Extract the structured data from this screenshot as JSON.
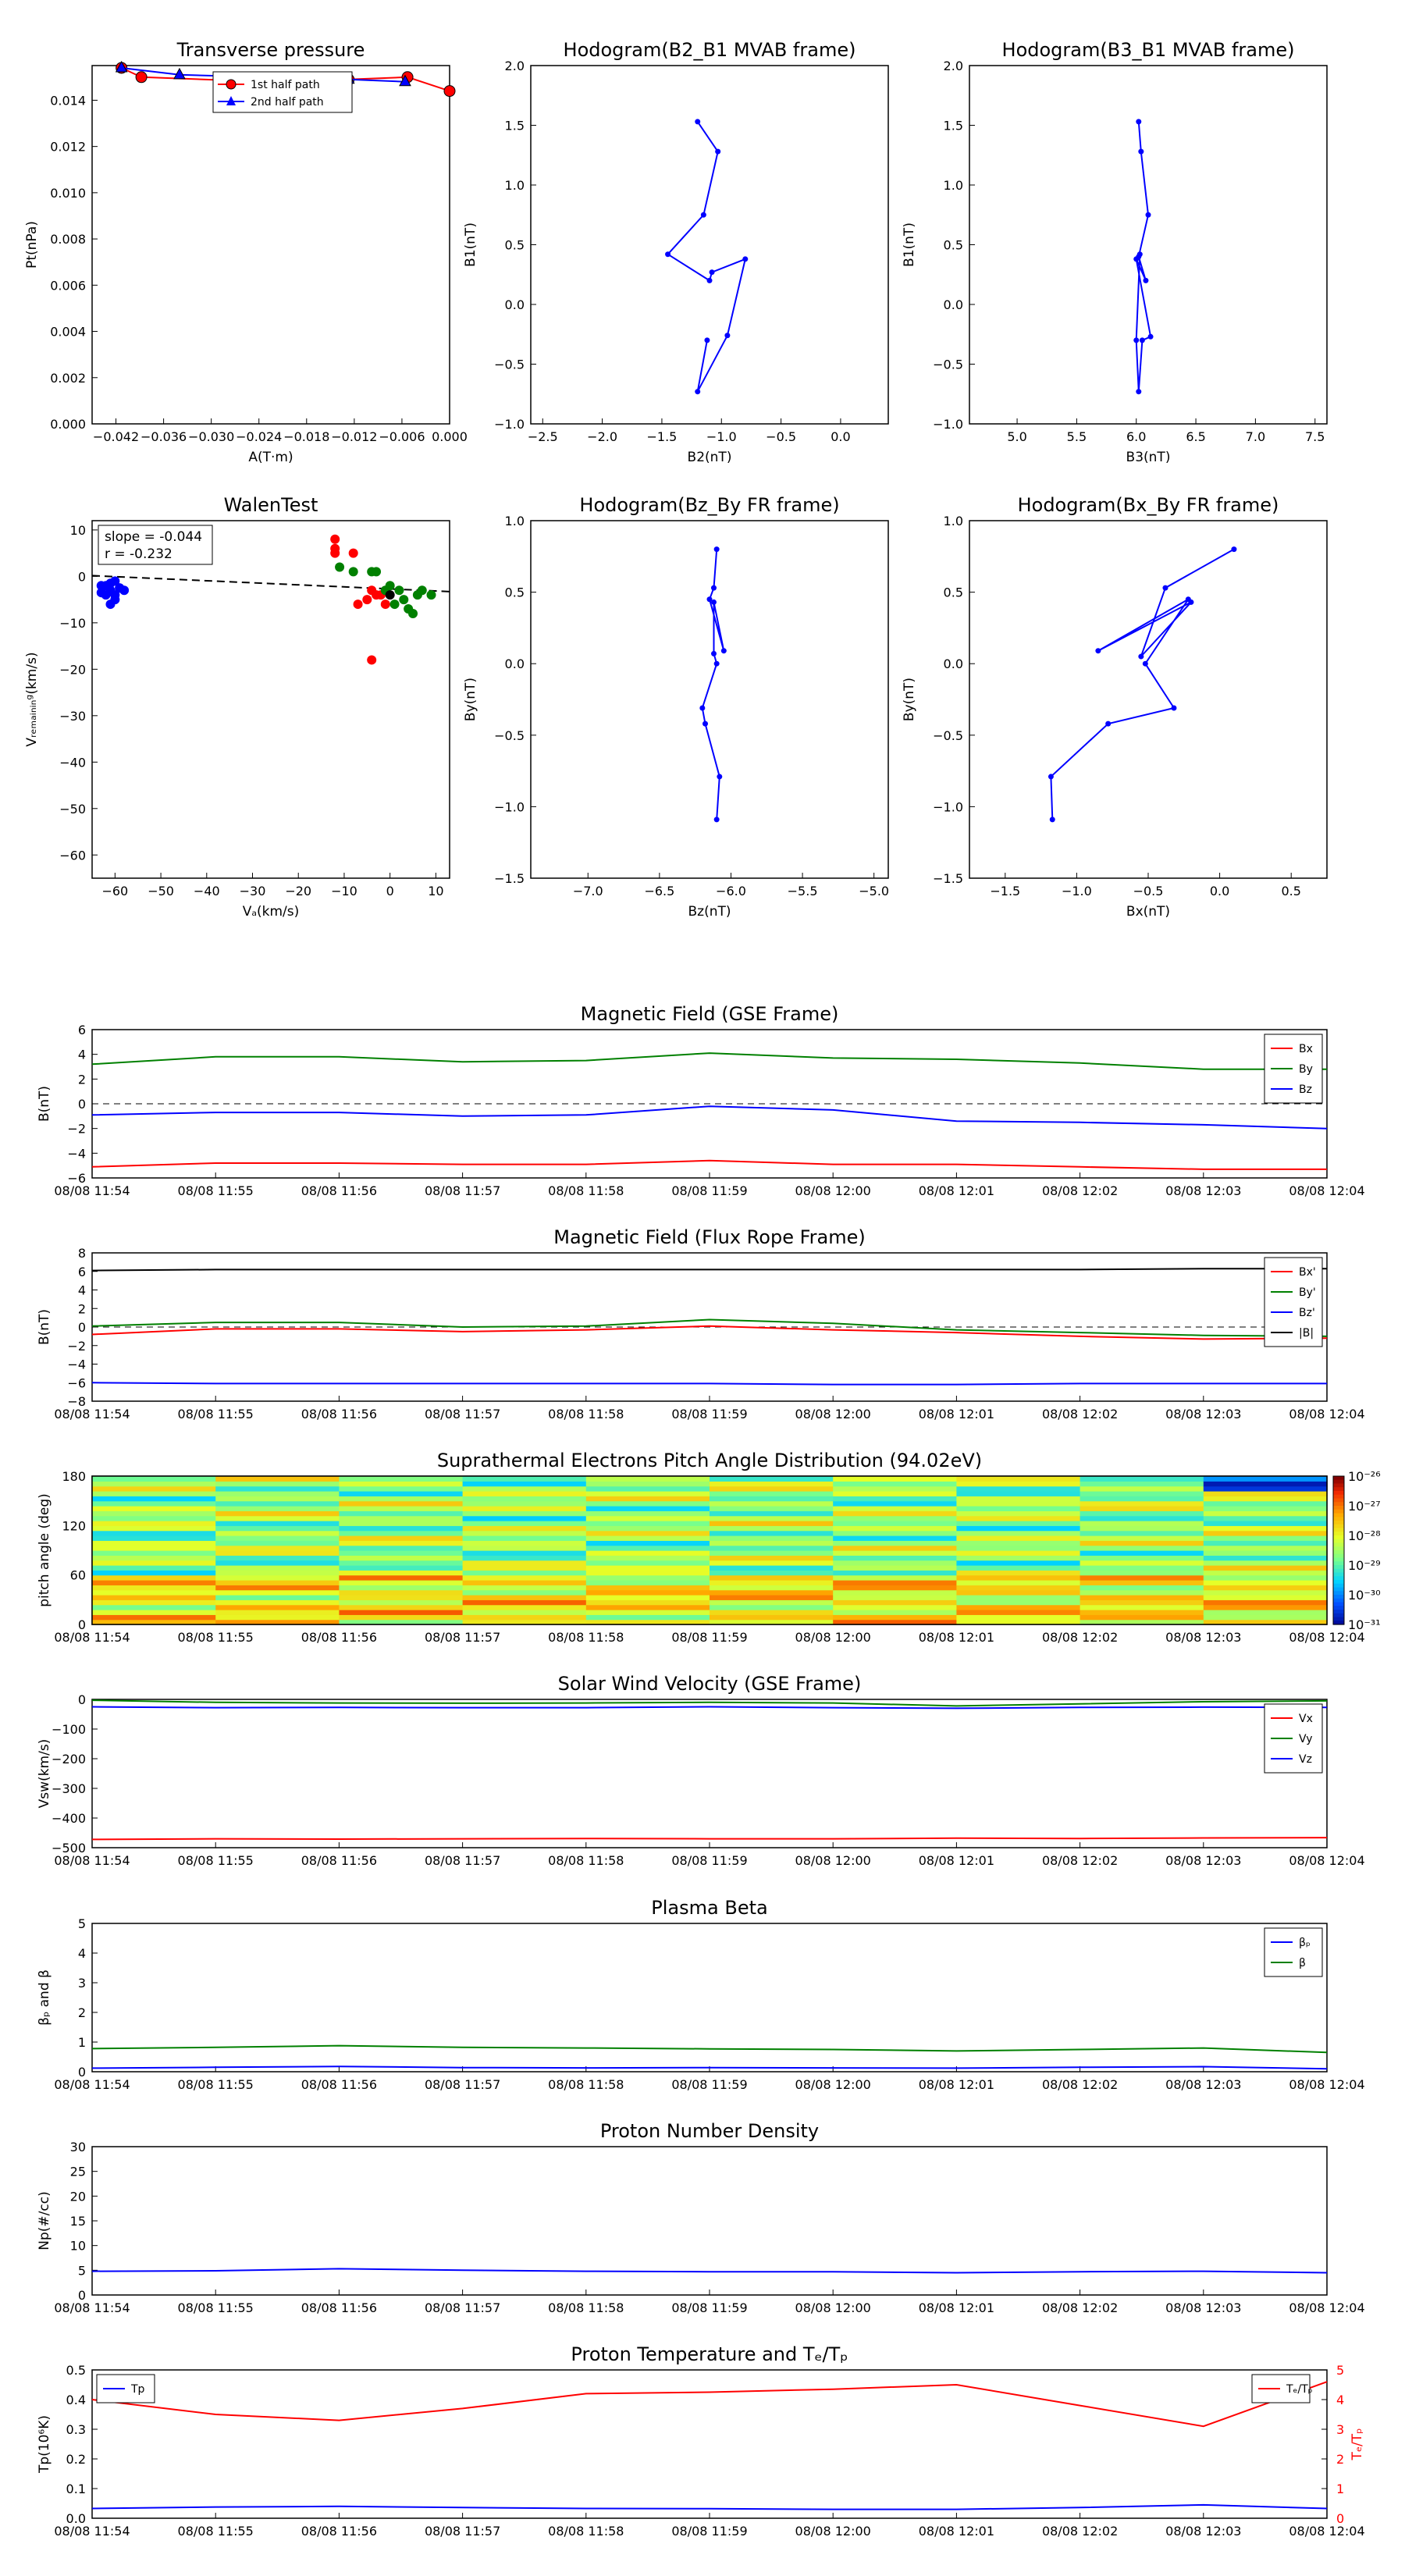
{
  "chart_data": [
    {
      "id": "tp",
      "type": "line",
      "title": "Transverse pressure",
      "xlabel": "A(T·m)",
      "ylabel": "Pt(nPa)",
      "xlim": [
        -0.045,
        0.0
      ],
      "ylim": [
        0.0,
        0.0155
      ],
      "xticks": [
        -0.042,
        -0.036,
        -0.03,
        -0.024,
        -0.018,
        -0.012,
        -0.006,
        0.0
      ],
      "xtick_labels": [
        "−0.042",
        "−0.036",
        "−0.030",
        "−0.024",
        "−0.018",
        "−0.012",
        "−0.006",
        "0.000"
      ],
      "yticks": [
        0.0,
        0.002,
        0.004,
        0.006,
        0.008,
        0.01,
        0.012,
        0.014
      ],
      "ytick_labels": [
        "0.000",
        "0.002",
        "0.004",
        "0.006",
        "0.008",
        "0.010",
        "0.012",
        "0.014"
      ],
      "legend": [
        "1st half path",
        "2nd half path"
      ],
      "series": [
        {
          "name": "1st half path",
          "color": "#ff0000",
          "marker": "circle",
          "x": [
            0.0,
            -0.0053,
            -0.0127,
            -0.0232,
            -0.0388,
            -0.0413
          ],
          "y": [
            0.0144,
            0.015,
            0.0149,
            0.0148,
            0.015,
            0.0154
          ]
        },
        {
          "name": "2nd half path",
          "color": "#0000ff",
          "marker": "triangle",
          "x": [
            -0.0413,
            -0.034,
            -0.0127,
            -0.0056
          ],
          "y": [
            0.0154,
            0.0151,
            0.0149,
            0.0148
          ]
        }
      ]
    },
    {
      "id": "h1",
      "type": "line",
      "title": "Hodogram(B2_B1 MVAB frame)",
      "xlabel": "B2(nT)",
      "ylabel": "B1(nT)",
      "xlim": [
        -2.6,
        0.4
      ],
      "ylim": [
        -1.0,
        2.0
      ],
      "xticks": [
        -2.5,
        -2.0,
        -1.5,
        -1.0,
        -0.5,
        0.0
      ],
      "xtick_labels": [
        "−2.5",
        "−2.0",
        "−1.5",
        "−1.0",
        "−0.5",
        "0.0"
      ],
      "yticks": [
        -1.0,
        -0.5,
        0.0,
        0.5,
        1.0,
        1.5,
        2.0
      ],
      "ytick_labels": [
        "−1.0",
        "−0.5",
        "0.0",
        "0.5",
        "1.0",
        "1.5",
        "2.0"
      ],
      "series": [
        {
          "color": "#0000ff",
          "marker": "dot",
          "x": [
            -1.2,
            -1.03,
            -1.15,
            -1.45,
            -1.1,
            -1.08,
            -0.8,
            -0.95,
            -1.2,
            -1.12
          ],
          "y": [
            1.53,
            1.28,
            0.75,
            0.42,
            0.2,
            0.27,
            0.38,
            -0.26,
            -0.73,
            -0.3
          ]
        }
      ]
    },
    {
      "id": "h2",
      "type": "line",
      "title": "Hodogram(B3_B1 MVAB frame)",
      "xlabel": "B3(nT)",
      "ylabel": "B1(nT)",
      "xlim": [
        4.6,
        7.6
      ],
      "ylim": [
        -1.0,
        2.0
      ],
      "xticks": [
        5.0,
        5.5,
        6.0,
        6.5,
        7.0,
        7.5
      ],
      "xtick_labels": [
        "5.0",
        "5.5",
        "6.0",
        "6.5",
        "7.0",
        "7.5"
      ],
      "yticks": [
        -1.0,
        -0.5,
        0.0,
        0.5,
        1.0,
        1.5,
        2.0
      ],
      "ytick_labels": [
        "−1.0",
        "−0.5",
        "0.0",
        "0.5",
        "1.0",
        "1.5",
        "2.0"
      ],
      "series": [
        {
          "color": "#0000ff",
          "marker": "dot",
          "x": [
            6.02,
            6.04,
            6.1,
            6.02,
            6.08,
            6.0,
            6.12,
            6.05,
            6.02,
            6.0,
            6.03
          ],
          "y": [
            1.53,
            1.28,
            0.75,
            0.4,
            0.2,
            0.38,
            -0.27,
            -0.3,
            -0.73,
            -0.3,
            0.42
          ]
        }
      ]
    },
    {
      "id": "walen",
      "type": "scatter",
      "title": "WalenTest",
      "xlabel": "Vₐ(km/s)",
      "ylabel": "Vᵣₑₘₐᵢₙᵢₙᵍ(km/s)",
      "xlim": [
        -65,
        13
      ],
      "ylim": [
        -65,
        12
      ],
      "xticks": [
        -60,
        -50,
        -40,
        -30,
        -20,
        -10,
        0,
        10
      ],
      "xtick_labels": [
        "−60",
        "−50",
        "−40",
        "−30",
        "−20",
        "−10",
        "0",
        "10"
      ],
      "yticks": [
        -60,
        -50,
        -40,
        -30,
        -20,
        -10,
        0,
        10
      ],
      "ytick_labels": [
        "−60",
        "−50",
        "−40",
        "−30",
        "−20",
        "−10",
        "0",
        "10"
      ],
      "annotation": [
        "slope = -0.044",
        "r = -0.232"
      ],
      "fit": {
        "slope": -0.044,
        "intercept": -2.7
      },
      "series": [
        {
          "color": "#0000ff",
          "x": [
            -63,
            -62,
            -61,
            -60,
            -59,
            -60,
            -61,
            -62,
            -58,
            -60,
            -63,
            -61,
            -59
          ],
          "y": [
            -2,
            -4,
            -3,
            -5,
            -2.5,
            -1,
            -6,
            -2,
            -3,
            -4,
            -3.5,
            -1.5,
            -2.5
          ]
        },
        {
          "color": "#ff0000",
          "x": [
            -12,
            -12,
            -8,
            -7,
            -5,
            -4,
            -3,
            -2,
            -1,
            -12,
            -4
          ],
          "y": [
            8,
            5,
            5,
            -6,
            -5,
            -3,
            -4,
            -4,
            -6,
            6,
            -18
          ]
        },
        {
          "color": "#008000",
          "x": [
            -11,
            -8,
            -3,
            -1,
            0,
            1,
            2,
            3,
            4,
            5,
            6,
            7,
            9,
            -4
          ],
          "y": [
            2,
            1,
            1,
            -3,
            -2,
            -6,
            -3,
            -5,
            -7,
            -8,
            -4,
            -3,
            -4,
            1
          ]
        },
        {
          "color": "#000000",
          "x": [
            0
          ],
          "y": [
            -4
          ]
        }
      ]
    },
    {
      "id": "h3",
      "type": "line",
      "title": "Hodogram(Bz_By FR frame)",
      "xlabel": "Bz(nT)",
      "ylabel": "By(nT)",
      "xlim": [
        -7.4,
        -4.9
      ],
      "ylim": [
        -1.5,
        1.0
      ],
      "xticks": [
        -7.0,
        -6.5,
        -6.0,
        -5.5,
        -5.0
      ],
      "xtick_labels": [
        "−7.0",
        "−6.5",
        "−6.0",
        "−5.5",
        "−5.0"
      ],
      "yticks": [
        -1.5,
        -1.0,
        -0.5,
        0.0,
        0.5,
        1.0
      ],
      "ytick_labels": [
        "−1.5",
        "−1.0",
        "−0.5",
        "0.0",
        "0.5",
        "1.0"
      ],
      "series": [
        {
          "color": "#0000ff",
          "marker": "dot",
          "x": [
            -6.1,
            -6.12,
            -6.15,
            -6.05,
            -6.12,
            -6.12,
            -6.1,
            -6.2,
            -6.18,
            -6.08,
            -6.1
          ],
          "y": [
            0.8,
            0.53,
            0.45,
            0.09,
            0.43,
            0.07,
            0.0,
            -0.31,
            -0.42,
            -0.79,
            -1.09
          ]
        }
      ]
    },
    {
      "id": "h4",
      "type": "line",
      "title": "Hodogram(Bx_By FR frame)",
      "xlabel": "Bx(nT)",
      "ylabel": "By(nT)",
      "xlim": [
        -1.75,
        0.75
      ],
      "ylim": [
        -1.5,
        1.0
      ],
      "xticks": [
        -1.5,
        -1.0,
        -0.5,
        0.0,
        0.5
      ],
      "xtick_labels": [
        "−1.5",
        "−1.0",
        "−0.5",
        "0.0",
        "0.5"
      ],
      "yticks": [
        -1.5,
        -1.0,
        -0.5,
        0.0,
        0.5,
        1.0
      ],
      "ytick_labels": [
        "−1.5",
        "−1.0",
        "−0.5",
        "0.0",
        "0.5",
        "1.0"
      ],
      "series": [
        {
          "color": "#0000ff",
          "marker": "dot",
          "x": [
            0.1,
            -0.38,
            -0.55,
            -0.2,
            -0.85,
            -0.22,
            -0.52,
            -0.32,
            -0.78,
            -1.18,
            -1.17
          ],
          "y": [
            0.8,
            0.53,
            0.05,
            0.43,
            0.09,
            0.45,
            0.0,
            -0.31,
            -0.42,
            -0.79,
            -1.09
          ]
        }
      ]
    },
    {
      "id": "mag_gse",
      "type": "line",
      "title": "Magnetic Field (GSE Frame)",
      "ylabel": "B(nT)",
      "ylim": [
        -6,
        6
      ],
      "yticks": [
        -6,
        -4,
        -2,
        0,
        2,
        4,
        6
      ],
      "ytick_labels": [
        "−6",
        "−4",
        "−2",
        "0",
        "2",
        "4",
        "6"
      ],
      "zero_line": true,
      "legend": [
        "Bx",
        "By",
        "Bz"
      ],
      "series": [
        {
          "name": "Bx",
          "color": "#ff0000",
          "values": [
            -5.1,
            -4.8,
            -4.8,
            -4.9,
            -4.9,
            -4.6,
            -4.9,
            -4.9,
            -5.1,
            -5.3,
            -5.3
          ]
        },
        {
          "name": "By",
          "color": "#008000",
          "values": [
            3.2,
            3.8,
            3.8,
            3.4,
            3.5,
            4.1,
            3.7,
            3.6,
            3.3,
            2.8,
            2.8
          ]
        },
        {
          "name": "Bz",
          "color": "#0000ff",
          "values": [
            -0.9,
            -0.7,
            -0.7,
            -1.0,
            -0.9,
            -0.2,
            -0.5,
            -1.4,
            -1.5,
            -1.7,
            -2.0
          ]
        }
      ]
    },
    {
      "id": "mag_fr",
      "type": "line",
      "title": "Magnetic Field (Flux Rope Frame)",
      "ylabel": "B(nT)",
      "ylim": [
        -8,
        8
      ],
      "yticks": [
        -8,
        -6,
        -4,
        -2,
        0,
        2,
        4,
        6,
        8
      ],
      "ytick_labels": [
        "−8",
        "−6",
        "−4",
        "−2",
        "0",
        "2",
        "4",
        "6",
        "8"
      ],
      "zero_line": true,
      "legend": [
        "Bx'",
        "By'",
        "Bz'",
        "|B|"
      ],
      "series": [
        {
          "name": "Bx'",
          "color": "#ff0000",
          "values": [
            -0.8,
            -0.2,
            -0.2,
            -0.5,
            -0.3,
            0.1,
            -0.3,
            -0.6,
            -1.0,
            -1.3,
            -1.2
          ]
        },
        {
          "name": "By'",
          "color": "#008000",
          "values": [
            0.1,
            0.5,
            0.5,
            0.0,
            0.1,
            0.8,
            0.4,
            -0.3,
            -0.6,
            -0.9,
            -1.0
          ]
        },
        {
          "name": "Bz'",
          "color": "#0000ff",
          "values": [
            -6.0,
            -6.1,
            -6.1,
            -6.1,
            -6.1,
            -6.1,
            -6.2,
            -6.2,
            -6.1,
            -6.1,
            -6.1
          ]
        },
        {
          "name": "|B|",
          "color": "#000000",
          "values": [
            6.1,
            6.2,
            6.2,
            6.2,
            6.2,
            6.2,
            6.2,
            6.2,
            6.2,
            6.3,
            6.3
          ]
        }
      ]
    },
    {
      "id": "pad",
      "type": "heatmap",
      "title": "Suprathermal Electrons Pitch Angle Distribution (94.02eV)",
      "ylabel": "pitch angle (deg)",
      "ylim": [
        0,
        180
      ],
      "yticks": [
        0,
        60,
        120,
        180
      ],
      "ytick_labels": [
        "0",
        "60",
        "120",
        "180"
      ],
      "colorbar_range_log10": [
        -31,
        -26
      ],
      "colorbar_labels": [
        "10⁻²⁶",
        "10⁻²⁷",
        "10⁻²⁸",
        "10⁻²⁹",
        "10⁻³⁰",
        "10⁻³¹"
      ],
      "rows": 30,
      "columns": 10
    },
    {
      "id": "vsw",
      "type": "line",
      "title": "Solar Wind Velocity (GSE Frame)",
      "ylabel": "Vsw(km/s)",
      "ylim": [
        -500,
        0
      ],
      "yticks": [
        -500,
        -400,
        -300,
        -200,
        -100,
        0
      ],
      "ytick_labels": [
        "−500",
        "−400",
        "−300",
        "−200",
        "−100",
        "0"
      ],
      "legend": [
        "Vx",
        "Vy",
        "Vz"
      ],
      "series": [
        {
          "name": "Vx",
          "color": "#ff0000",
          "values": [
            -472,
            -470,
            -471,
            -470,
            -469,
            -470,
            -470,
            -468,
            -469,
            -467,
            -466
          ]
        },
        {
          "name": "Vy",
          "color": "#008000",
          "values": [
            -3,
            -10,
            -12,
            -13,
            -12,
            -10,
            -12,
            -22,
            -15,
            -8,
            -5
          ]
        },
        {
          "name": "Vz",
          "color": "#0000ff",
          "values": [
            -25,
            -28,
            -27,
            -28,
            -28,
            -25,
            -28,
            -30,
            -27,
            -26,
            -27
          ]
        }
      ]
    },
    {
      "id": "beta",
      "type": "line",
      "title": "Plasma Beta",
      "ylabel": "βₚ and β",
      "ylim": [
        0,
        5
      ],
      "yticks": [
        0,
        1,
        2,
        3,
        4,
        5
      ],
      "ytick_labels": [
        "0",
        "1",
        "2",
        "3",
        "4",
        "5"
      ],
      "legend": [
        "βₚ",
        "β"
      ],
      "series": [
        {
          "name": "βₚ",
          "color": "#0000ff",
          "values": [
            0.12,
            0.15,
            0.18,
            0.14,
            0.13,
            0.14,
            0.13,
            0.12,
            0.15,
            0.17,
            0.1
          ]
        },
        {
          "name": "β",
          "color": "#008000",
          "values": [
            0.78,
            0.82,
            0.88,
            0.82,
            0.8,
            0.77,
            0.75,
            0.7,
            0.75,
            0.8,
            0.65
          ]
        }
      ]
    },
    {
      "id": "np",
      "type": "line",
      "title": "Proton Number Density",
      "ylabel": "Np(#/cc)",
      "ylim": [
        0,
        30
      ],
      "yticks": [
        0,
        5,
        10,
        15,
        20,
        25,
        30
      ],
      "ytick_labels": [
        "0",
        "5",
        "10",
        "15",
        "20",
        "25",
        "30"
      ],
      "series": [
        {
          "name": "Np",
          "color": "#0000ff",
          "values": [
            4.8,
            4.9,
            5.3,
            5.0,
            4.8,
            4.7,
            4.7,
            4.5,
            4.7,
            4.8,
            4.5
          ]
        }
      ]
    },
    {
      "id": "temp",
      "type": "line",
      "title": "Proton Temperature and Tₑ/Tₚ",
      "ylabel": "Tp(10⁶K)",
      "ylim": [
        0,
        0.5
      ],
      "yticks": [
        0.0,
        0.1,
        0.2,
        0.3,
        0.4,
        0.5
      ],
      "ytick_labels": [
        "0.0",
        "0.1",
        "0.2",
        "0.3",
        "0.4",
        "0.5"
      ],
      "ylabel_right": "Tₑ/Tₚ",
      "ylim_right": [
        0,
        5
      ],
      "yticks_right": [
        0,
        1,
        2,
        3,
        4,
        5
      ],
      "ytick_labels_right": [
        "0",
        "1",
        "2",
        "3",
        "4",
        "5"
      ],
      "legend_left": "Tp",
      "legend_right": "Tₑ/Tₚ",
      "series": [
        {
          "name": "Tp",
          "color": "#0000ff",
          "axis": "left",
          "values": [
            0.033,
            0.038,
            0.04,
            0.036,
            0.033,
            0.032,
            0.03,
            0.03,
            0.036,
            0.045,
            0.033
          ]
        },
        {
          "name": "Tₑ/Tₚ",
          "color": "#ff0000",
          "axis": "right",
          "values": [
            4.0,
            3.5,
            3.3,
            3.7,
            4.2,
            4.25,
            4.35,
            4.5,
            3.8,
            3.1,
            4.6
          ]
        }
      ]
    }
  ],
  "time_axis": [
    "08/08 11:54",
    "08/08 11:55",
    "08/08 11:56",
    "08/08 11:57",
    "08/08 11:58",
    "08/08 11:59",
    "08/08 12:00",
    "08/08 12:01",
    "08/08 12:02",
    "08/08 12:03",
    "08/08 12:04"
  ]
}
